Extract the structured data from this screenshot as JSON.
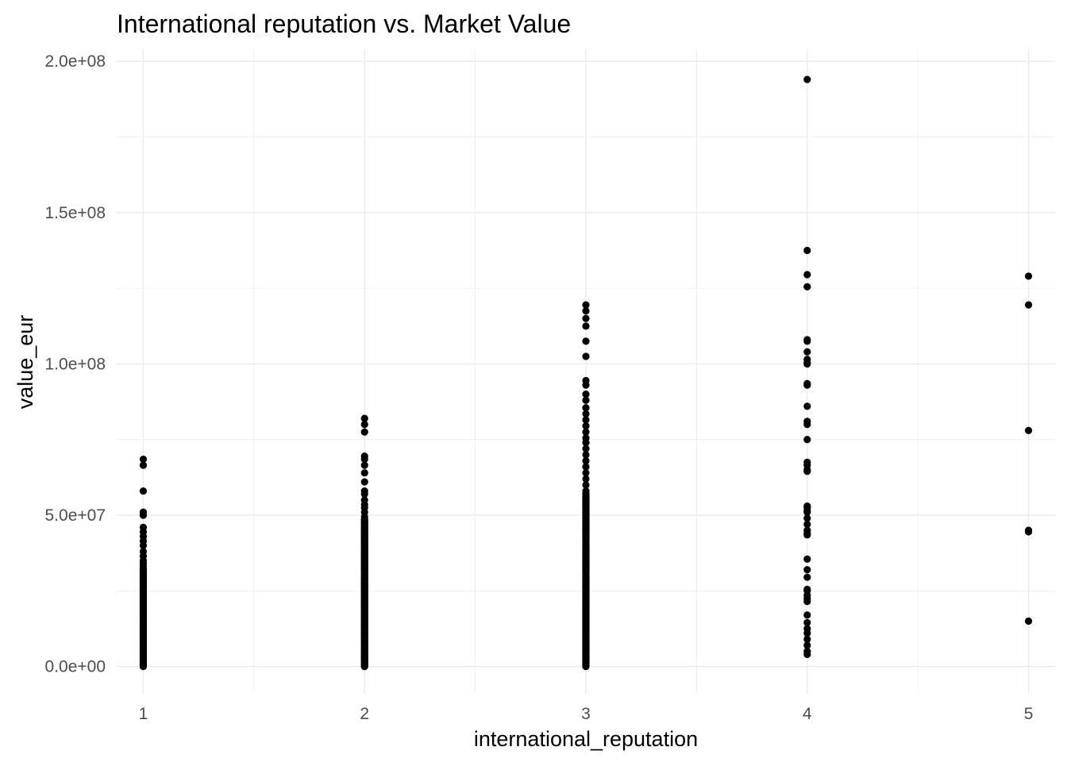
{
  "chart_data": {
    "type": "scatter",
    "title": "International reputation vs. Market Value",
    "xlabel": "international_reputation",
    "ylabel": "value_eur",
    "xlim": [
      0.88,
      5.12
    ],
    "ylim": [
      -9000000,
      204000000
    ],
    "x_ticks": [
      1,
      2,
      3,
      4,
      5
    ],
    "x_tick_labels": [
      "1",
      "2",
      "3",
      "4",
      "5"
    ],
    "y_ticks": [
      0,
      50000000,
      100000000,
      150000000,
      200000000
    ],
    "y_tick_labels": [
      "0.0e+00",
      "5.0e+07",
      "1.0e+08",
      "1.5e+08",
      "2.0e+08"
    ],
    "grid": true,
    "legend": "none",
    "point_color": "#000000",
    "series": [
      {
        "x": 1,
        "values": [
          68500000,
          66500000,
          58000000,
          51000000,
          50000000,
          46000000,
          44500000,
          43000000,
          41500000,
          40000000,
          38000000,
          36500000,
          35000000,
          34000000,
          33000000,
          32000000
        ],
        "dense_range": [
          0,
          32000000
        ]
      },
      {
        "x": 2,
        "values": [
          82000000,
          80000000,
          77500000,
          69500000,
          68500000,
          66500000,
          64000000,
          61000000,
          58000000,
          57000000,
          55000000,
          53500000,
          52500000,
          51000000,
          49500000,
          48500000
        ],
        "dense_range": [
          0,
          48500000
        ]
      },
      {
        "x": 3,
        "values": [
          119500000,
          117500000,
          115000000,
          112500000,
          107500000,
          102500000,
          94500000,
          93000000,
          90000000,
          88000000,
          85500000,
          83500000,
          81500000,
          79500000,
          77500000,
          75500000,
          74000000,
          72000000,
          70000000,
          68000000,
          66000000,
          64000000,
          62000000,
          60000000,
          58000000,
          57000000
        ],
        "dense_range": [
          0,
          57000000
        ]
      },
      {
        "x": 4,
        "values": [
          194000000,
          137500000,
          129500000,
          125500000,
          108000000,
          107500000,
          104000000,
          101500000,
          100500000,
          100000000,
          93500000,
          93000000,
          86000000,
          81000000,
          80000000,
          75000000,
          67500000,
          66500000,
          65000000,
          64500000,
          53000000,
          52500000,
          51500000,
          51000000,
          49000000,
          47000000,
          45000000,
          44000000,
          43500000,
          35500000,
          32000000,
          29500000,
          25500000,
          25000000,
          23500000,
          22500000,
          21500000,
          17000000,
          14500000,
          12500000,
          11000000,
          9000000,
          7000000,
          5000000,
          4000000
        ]
      },
      {
        "x": 5,
        "values": [
          129000000,
          119500000,
          78000000,
          45000000,
          44500000,
          15000000
        ]
      }
    ]
  }
}
